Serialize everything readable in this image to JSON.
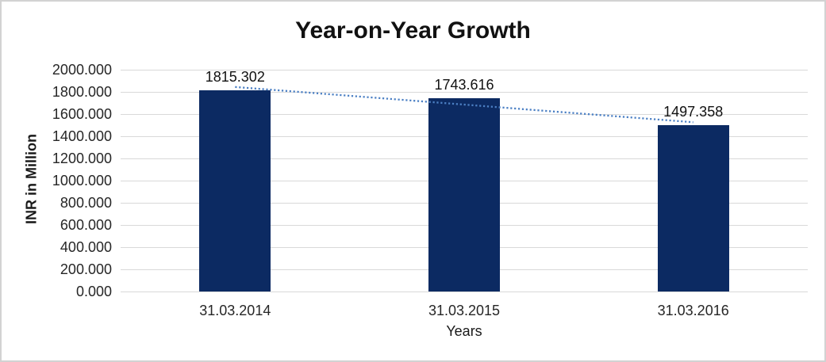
{
  "chart_data": {
    "type": "bar",
    "title": "Year-on-Year Growth",
    "xlabel": "Years",
    "ylabel": "INR in Million",
    "categories": [
      "31.03.2014",
      "31.03.2015",
      "31.03.2016"
    ],
    "values": [
      1815.302,
      1743.616,
      1497.358
    ],
    "value_labels": [
      "1815.302",
      "1743.616",
      "1497.358"
    ],
    "ylim": [
      0,
      2000
    ],
    "ytick_step": 200,
    "ytick_labels": [
      "0.000",
      "200.000",
      "400.000",
      "600.000",
      "800.000",
      "1000.000",
      "1200.000",
      "1400.000",
      "1600.000",
      "1800.000",
      "2000.000"
    ],
    "grid": true,
    "legend": false,
    "trendline": {
      "type": "linear",
      "style": "dotted"
    }
  },
  "colors": {
    "bar": "#0c2a62",
    "trendline": "#4c80c4",
    "gridline": "#d9d9d9",
    "axis_text": "#262626",
    "title_text": "#111111",
    "background": "#ffffff",
    "border": "#d2d2d2"
  }
}
